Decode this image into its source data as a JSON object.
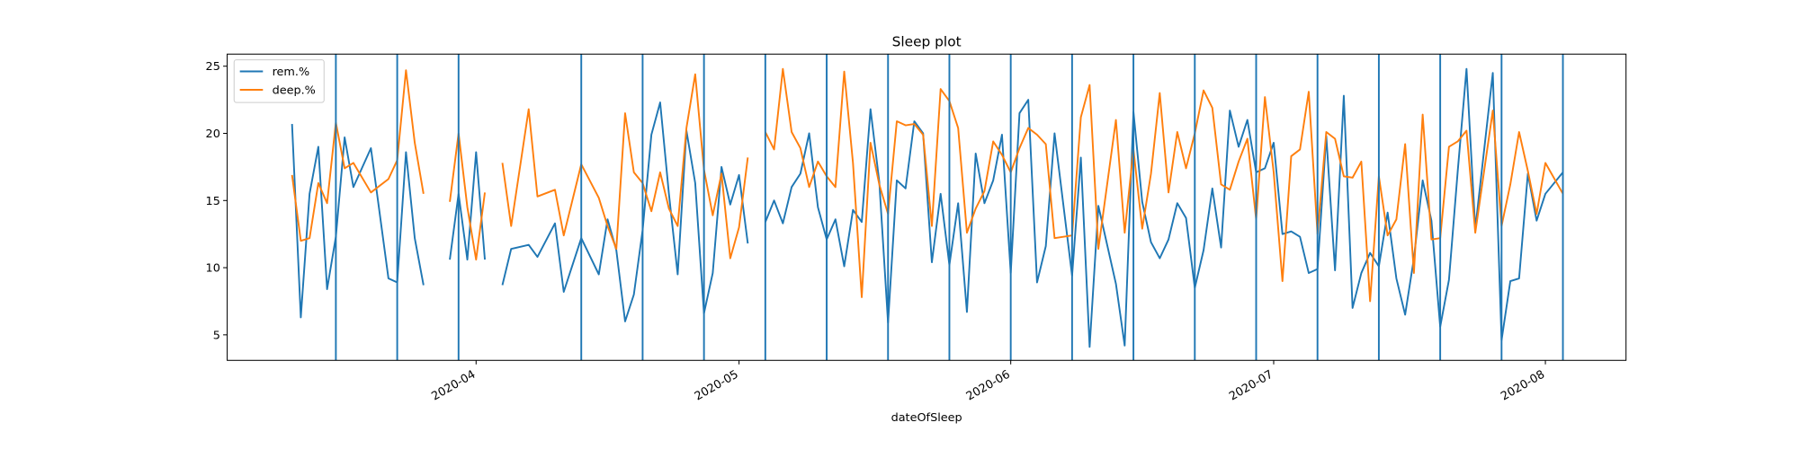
{
  "chart_data": {
    "type": "line",
    "title": "Sleep plot",
    "x_label": "dateOfSleep",
    "xlim": [
      18324.6,
      18484.2
    ],
    "ylim": [
      3.1,
      25.9
    ],
    "xticks": [
      {
        "value": 18353,
        "label": "2020-04"
      },
      {
        "value": 18383,
        "label": "2020-05"
      },
      {
        "value": 18414,
        "label": "2020-06"
      },
      {
        "value": 18444,
        "label": "2020-07"
      },
      {
        "value": 18475,
        "label": "2020-08"
      }
    ],
    "yticks": [
      5,
      10,
      15,
      20,
      25
    ],
    "legend": "upper left",
    "x": [
      18332,
      18333,
      18334,
      18335,
      18336,
      18337,
      18338,
      18339,
      18341,
      18343,
      18344,
      18345,
      18346,
      18347,
      18348,
      18350,
      18351,
      18352,
      18353,
      18354,
      18355,
      18356,
      18357,
      18359,
      18360,
      18362,
      18363,
      18365,
      18367,
      18368,
      18369,
      18370,
      18371,
      18372,
      18373,
      18374,
      18375,
      18376,
      18377,
      18378,
      18379,
      18380,
      18381,
      18382,
      18383,
      18384,
      18385,
      18386,
      18387,
      18388,
      18389,
      18390,
      18391,
      18392,
      18393,
      18394,
      18395,
      18396,
      18397,
      18398,
      18399,
      18400,
      18401,
      18402,
      18403,
      18404,
      18405,
      18406,
      18407,
      18408,
      18409,
      18410,
      18411,
      18412,
      18413,
      18414,
      18415,
      18416,
      18417,
      18418,
      18419,
      18421,
      18422,
      18423,
      18424,
      18426,
      18427,
      18428,
      18429,
      18430,
      18431,
      18432,
      18433,
      18434,
      18435,
      18436,
      18437,
      18438,
      18439,
      18440,
      18441,
      18442,
      18443,
      18444,
      18445,
      18446,
      18447,
      18448,
      18449,
      18450,
      18451,
      18452,
      18453,
      18454,
      18455,
      18456,
      18457,
      18458,
      18459,
      18460,
      18461,
      18462,
      18463,
      18464,
      18465,
      18466,
      18467,
      18469,
      18470,
      18471,
      18472,
      18473,
      18474,
      18475,
      18477
    ],
    "series": [
      {
        "name": "rem.%",
        "color": "#1f77b4",
        "values": [
          20.7,
          6.3,
          15.5,
          19.0,
          8.4,
          12.3,
          19.7,
          16.0,
          18.9,
          9.2,
          8.9,
          18.6,
          12.2,
          8.7,
          null,
          10.6,
          15.5,
          10.6,
          18.6,
          10.6,
          null,
          8.7,
          11.4,
          11.7,
          10.8,
          13.3,
          8.2,
          12.2,
          9.5,
          13.6,
          11.3,
          6.0,
          8.0,
          12.8,
          19.9,
          22.3,
          15.5,
          9.5,
          20.2,
          16.3,
          6.6,
          9.6,
          17.5,
          14.7,
          16.9,
          11.8,
          null,
          13.4,
          15.0,
          13.3,
          16.0,
          17.0,
          20.0,
          14.5,
          12.1,
          13.6,
          10.1,
          14.3,
          13.4,
          21.8,
          16.4,
          5.9,
          16.5,
          15.9,
          20.9,
          20.0,
          10.4,
          15.5,
          10.2,
          14.8,
          6.7,
          18.5,
          14.8,
          16.5,
          19.9,
          9.6,
          21.5,
          22.5,
          8.9,
          11.6,
          20.0,
          9.4,
          18.2,
          4.1,
          14.6,
          8.8,
          4.2,
          21.6,
          14.9,
          11.9,
          10.7,
          12.1,
          14.8,
          13.7,
          8.5,
          11.3,
          15.9,
          11.5,
          21.7,
          19.0,
          21.0,
          17.1,
          17.4,
          19.3,
          12.5,
          12.7,
          12.3,
          9.6,
          9.9,
          19.8,
          9.8,
          22.8,
          7.0,
          9.6,
          11.1,
          10.1,
          14.1,
          9.2,
          6.5,
          10.7,
          16.5,
          13.5,
          5.6,
          9.1,
          17.2,
          24.8,
          12.9,
          24.5,
          4.6,
          9.0,
          9.2,
          17.0,
          13.5,
          15.5,
          17.1
        ]
      },
      {
        "name": "deep.%",
        "color": "#ff7f0e",
        "values": [
          16.9,
          12.0,
          12.2,
          16.3,
          14.8,
          20.8,
          17.4,
          17.8,
          15.6,
          16.6,
          18.0,
          24.7,
          19.3,
          15.5,
          null,
          14.9,
          20.0,
          14.5,
          10.6,
          15.6,
          null,
          17.8,
          13.1,
          21.8,
          15.3,
          15.8,
          12.4,
          17.7,
          15.2,
          13.1,
          11.4,
          21.5,
          17.1,
          16.3,
          14.2,
          17.1,
          14.4,
          13.1,
          20.4,
          24.4,
          17.3,
          13.9,
          17.0,
          10.7,
          13.0,
          18.2,
          null,
          20.1,
          18.8,
          24.8,
          20.1,
          18.9,
          16.0,
          17.9,
          16.8,
          16.0,
          24.6,
          17.8,
          7.8,
          19.3,
          16.2,
          14.0,
          20.9,
          20.6,
          20.7,
          19.9,
          13.1,
          23.3,
          22.4,
          20.4,
          12.6,
          14.4,
          15.7,
          19.4,
          18.4,
          17.1,
          18.9,
          20.4,
          19.9,
          19.2,
          12.2,
          12.4,
          21.2,
          23.6,
          11.4,
          21.0,
          12.6,
          18.8,
          12.9,
          17.0,
          23.0,
          15.6,
          20.1,
          17.4,
          20.0,
          23.2,
          21.9,
          16.2,
          15.8,
          17.9,
          19.6,
          13.6,
          22.7,
          17.1,
          9.0,
          18.3,
          18.8,
          23.1,
          12.5,
          20.1,
          19.6,
          16.8,
          16.7,
          17.9,
          7.5,
          16.8,
          12.4,
          13.6,
          19.2,
          9.6,
          21.4,
          12.1,
          12.2,
          19.0,
          19.4,
          20.2,
          12.6,
          21.7,
          13.1,
          16.2,
          20.1,
          17.2,
          14.0,
          17.8,
          15.5
        ]
      }
    ],
    "vlines": {
      "color": "#1f77b4",
      "x": [
        18337,
        18344,
        18351,
        18365,
        18372,
        18379,
        18386,
        18393,
        18400,
        18407,
        18414,
        18421,
        18428,
        18435,
        18442,
        18449,
        18456,
        18463,
        18470,
        18477
      ]
    }
  }
}
